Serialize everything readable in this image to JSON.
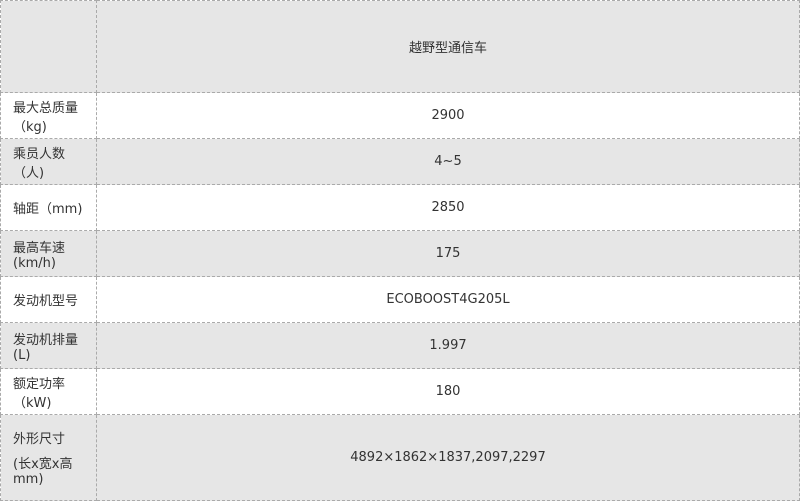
{
  "header": {
    "corner": "",
    "title": "越野型通信车"
  },
  "rows": [
    {
      "label": "最大总质量（kg)",
      "value": "2900"
    },
    {
      "label": "乘员人数（人)",
      "value": "4~5"
    },
    {
      "label": "轴距（mm)",
      "value": "2850"
    },
    {
      "label": "最高车速(km/h)",
      "value": "175"
    },
    {
      "label": "发动机型号",
      "value": "ECOBOOST4G205L"
    },
    {
      "label": "发动机排量(L)",
      "value": "1.997"
    },
    {
      "label": "额定功率（kW)",
      "value": "180"
    },
    {
      "label": "外形尺寸",
      "label2": "(长x宽x高mm)",
      "value": "4892×1862×1837,2097,2297"
    }
  ]
}
